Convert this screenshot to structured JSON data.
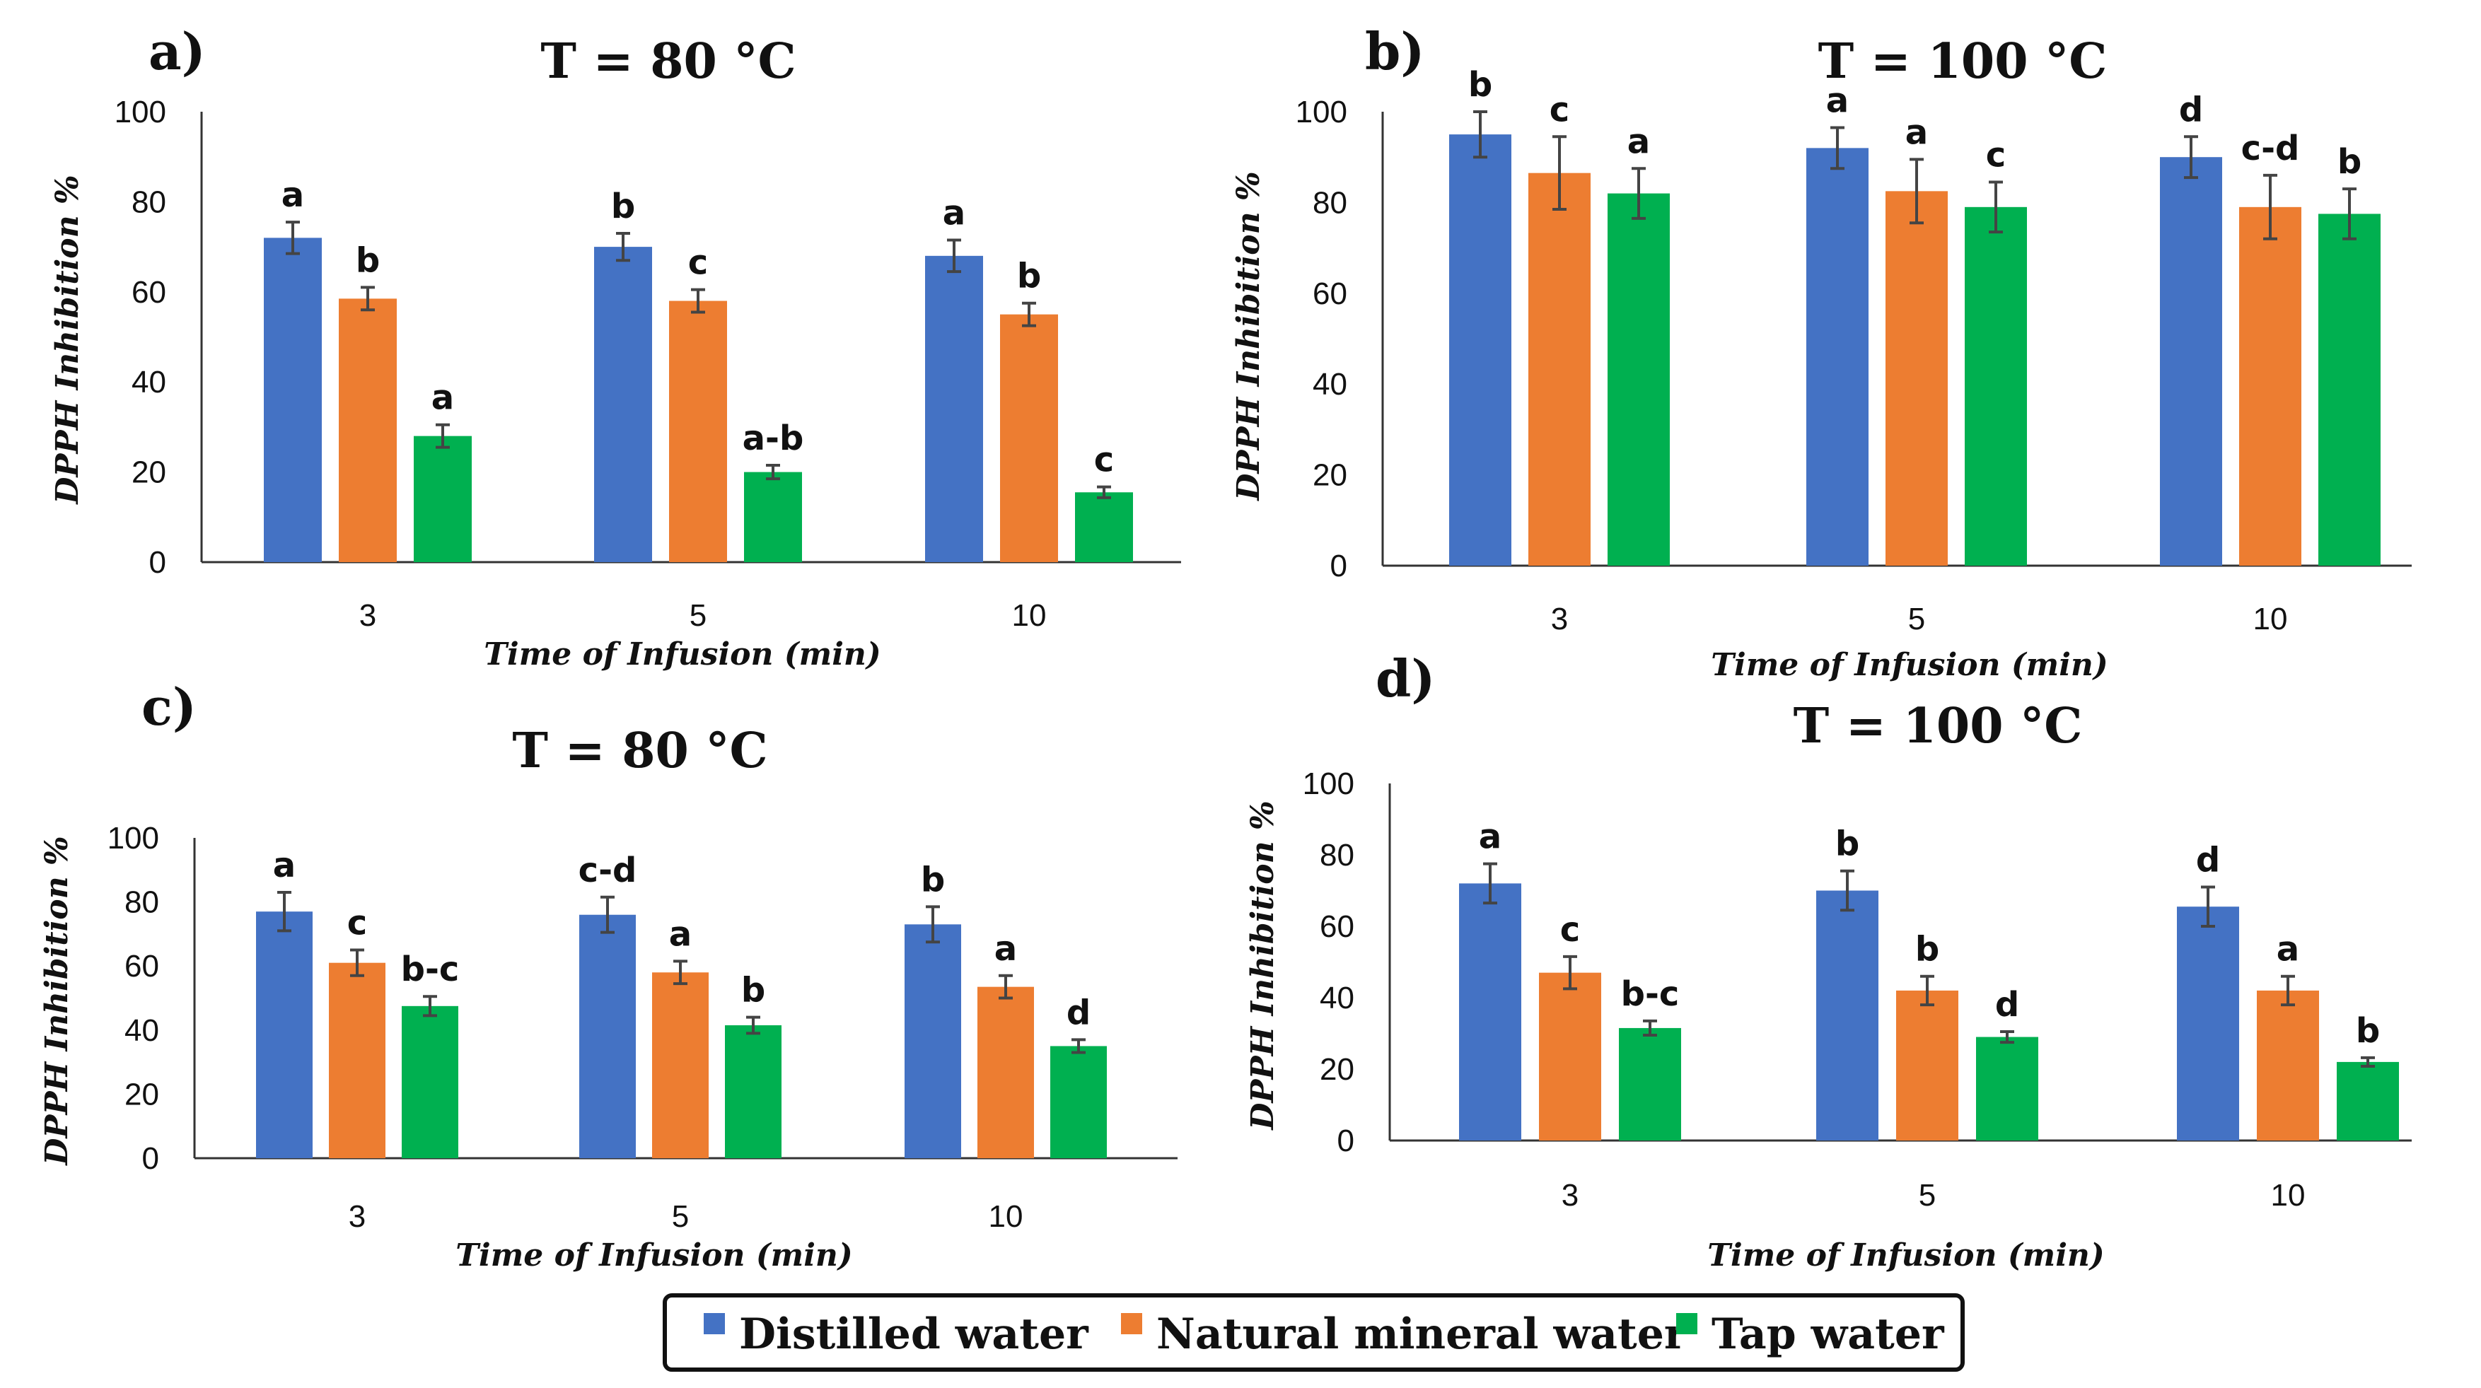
{
  "colors": {
    "Distilled water": "#4472c4",
    "Natural mineral water": "#ed7d31",
    "Tap water": "#00b050"
  },
  "legend": [
    "Distilled water",
    "Natural mineral water",
    "Tap water"
  ],
  "chart_data": [
    {
      "panel": "a)",
      "type": "bar",
      "title": "T = 80 °C",
      "xlabel": "Time of Infusion (min)",
      "ylabel": "DPPH Inhibition %",
      "ylim": [
        0,
        100
      ],
      "yticks": [
        0,
        20,
        40,
        60,
        80,
        100
      ],
      "categories": [
        "3",
        "5",
        "10"
      ],
      "series": [
        {
          "name": "Distilled water",
          "values": [
            72,
            70,
            68
          ],
          "errors": [
            3.5,
            3,
            3.5
          ],
          "labels": [
            "a",
            "b",
            "a"
          ]
        },
        {
          "name": "Natural mineral water",
          "values": [
            58.5,
            58,
            55
          ],
          "errors": [
            2.5,
            2.5,
            2.5
          ],
          "labels": [
            "b",
            "c",
            "b"
          ]
        },
        {
          "name": "Tap water",
          "values": [
            28,
            20,
            15.5
          ],
          "errors": [
            2.5,
            1.5,
            1.2
          ],
          "labels": [
            "a",
            "a-b",
            "c"
          ]
        }
      ]
    },
    {
      "panel": "b)",
      "type": "bar",
      "title": "T = 100 °C",
      "xlabel": "Time of Infusion (min)",
      "ylabel": "DPPH Inhibition %",
      "ylim": [
        0,
        100
      ],
      "yticks": [
        0,
        20,
        40,
        60,
        80,
        100
      ],
      "categories": [
        "3",
        "5",
        "10"
      ],
      "series": [
        {
          "name": "Distilled water",
          "values": [
            95,
            92,
            90
          ],
          "errors": [
            5,
            4.5,
            4.5
          ],
          "labels": [
            "b",
            "a",
            "d"
          ]
        },
        {
          "name": "Natural mineral water",
          "values": [
            86.5,
            82.5,
            79
          ],
          "errors": [
            8,
            7,
            7
          ],
          "labels": [
            "c",
            "a",
            "c-d"
          ]
        },
        {
          "name": "Tap water",
          "values": [
            82,
            79,
            77.5
          ],
          "errors": [
            5.5,
            5.5,
            5.5
          ],
          "labels": [
            "a",
            "c",
            "b"
          ]
        }
      ]
    },
    {
      "panel": "c)",
      "type": "bar",
      "title": "T = 80 °C",
      "xlabel": "Time of Infusion (min)",
      "ylabel": "DPPH Inhibition %",
      "ylim": [
        0,
        100
      ],
      "yticks": [
        0,
        20,
        40,
        60,
        80,
        100
      ],
      "categories": [
        "3",
        "5",
        "10"
      ],
      "series": [
        {
          "name": "Distilled water",
          "values": [
            77,
            76,
            73
          ],
          "errors": [
            6,
            5.5,
            5.5
          ],
          "labels": [
            "a",
            "c-d",
            "b"
          ]
        },
        {
          "name": "Natural mineral water",
          "values": [
            61,
            58,
            53.5
          ],
          "errors": [
            4,
            3.5,
            3.5
          ],
          "labels": [
            "c",
            "a",
            "a"
          ]
        },
        {
          "name": "Tap water",
          "values": [
            47.5,
            41.5,
            35
          ],
          "errors": [
            3,
            2.5,
            2
          ],
          "labels": [
            "b-c",
            "b",
            "d"
          ]
        }
      ]
    },
    {
      "panel": "d)",
      "type": "bar",
      "title": "T = 100 °C",
      "xlabel": "Time of Infusion (min)",
      "ylabel": "DPPH Inhibition %",
      "ylim": [
        0,
        100
      ],
      "yticks": [
        0,
        20,
        40,
        60,
        80,
        100
      ],
      "categories": [
        "3",
        "5",
        "10"
      ],
      "series": [
        {
          "name": "Distilled water",
          "values": [
            72,
            70,
            65.5
          ],
          "errors": [
            5.5,
            5.5,
            5.5
          ],
          "labels": [
            "a",
            "b",
            "d"
          ]
        },
        {
          "name": "Natural mineral water",
          "values": [
            47,
            42,
            42
          ],
          "errors": [
            4.5,
            4,
            4
          ],
          "labels": [
            "c",
            "b",
            "a"
          ]
        },
        {
          "name": "Tap water",
          "values": [
            31.5,
            29,
            22
          ],
          "errors": [
            2,
            1.5,
            1.2
          ],
          "labels": [
            "b-c",
            "d",
            "b"
          ]
        }
      ]
    }
  ]
}
